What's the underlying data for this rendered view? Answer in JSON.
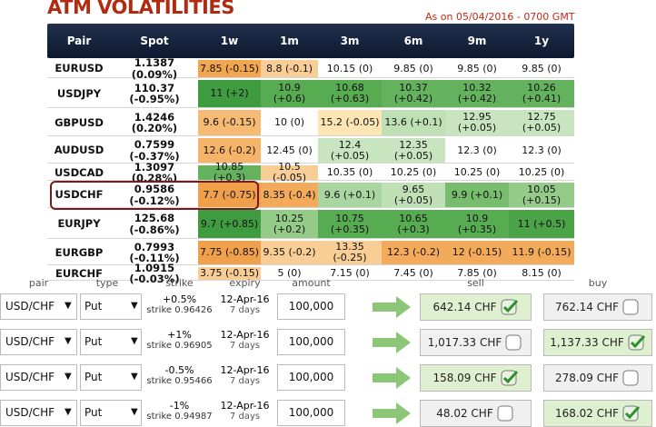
{
  "header": {
    "title": "ATM VOLATILITIES",
    "as_of": "As on 05/04/2016 - 0700 GMT"
  },
  "table": {
    "columns": [
      "Pair",
      "Spot",
      "1w",
      "1m",
      "3m",
      "6m",
      "9m",
      "1y"
    ],
    "rows": [
      {
        "cells": [
          "EURUSD",
          "1.1387 (0.09%)",
          "7.85 (-0.15)",
          "8.8 (-0.1)",
          "10.15 (0)",
          "9.85 (0)",
          "9.85 (0)",
          "9.85 (0)"
        ],
        "colors": [
          "#f2a64f",
          "#f8cd96",
          "#ffffff",
          "#ffffff",
          "#ffffff",
          "#ffffff"
        ]
      },
      {
        "cells": [
          "USDJPY",
          "110.37 (-0.95%)",
          "11 (+2)",
          "10.9 (+0.6)",
          "10.68 (+0.63)",
          "10.37 (+0.42)",
          "10.32 (+0.42)",
          "10.26 (+0.41)"
        ],
        "colors": [
          "#3f9b3f",
          "#57ab51",
          "#57ab51",
          "#64b25d",
          "#64b25d",
          "#64b25d"
        ]
      },
      {
        "cells": [
          "GBPUSD",
          "1.4246 (0.20%)",
          "9.6 (-0.15)",
          "10 (0)",
          "15.2 (-0.05)",
          "13.6 (+0.1)",
          "12.95 (+0.05)",
          "12.75 (+0.05)"
        ],
        "colors": [
          "#f5bb74",
          "#ffffff",
          "#fde6b4",
          "#bfe0b5",
          "#c8e5bf",
          "#c8e5bf"
        ]
      },
      {
        "cells": [
          "AUDUSD",
          "0.7599 (-0.37%)",
          "12.6 (-0.2)",
          "12.45 (0)",
          "12.4 (+0.05)",
          "12.35 (+0.05)",
          "12.3 (0)",
          "12.3 (0)"
        ],
        "colors": [
          "#f5b468",
          "#ffffff",
          "#c8e5bf",
          "#c8e5bf",
          "#ffffff",
          "#ffffff"
        ]
      },
      {
        "cells": [
          "USDCAD",
          "1.3097 (0.28%)",
          "10.85 (+0.3)",
          "10.5 (-0.05)",
          "10.35 (0)",
          "10.25 (0)",
          "10.25 (0)",
          "10.25 (0)"
        ],
        "colors": [
          "#64b25d",
          "#f8cd96",
          "#ffffff",
          "#ffffff",
          "#ffffff",
          "#ffffff"
        ]
      },
      {
        "cells": [
          "USDCHF",
          "0.9586 (-0.12%)",
          "7.7 (-0.75)",
          "8.35 (-0.4)",
          "9.6 (+0.1)",
          "9.65 (+0.05)",
          "9.9 (+0.1)",
          "10.05 (+0.15)"
        ],
        "colors": [
          "#f0a04b",
          "#f3ab5b",
          "#a9d6a0",
          "#bfe0b5",
          "#78bc6e",
          "#94cb89"
        ],
        "selected": true
      },
      {
        "cells": [
          "EURJPY",
          "125.68 (-0.86%)",
          "9.7 (+0.85)",
          "10.25 (+0.2)",
          "10.75 (+0.35)",
          "10.65 (+0.3)",
          "10.9 (+0.35)",
          "11 (+0.5)"
        ],
        "colors": [
          "#3f9b3f",
          "#94cb89",
          "#57ab51",
          "#57ab51",
          "#57ab51",
          "#4aa346"
        ]
      },
      {
        "cells": [
          "EURGBP",
          "0.7993 (-0.11%)",
          "7.75 (-0.85)",
          "9.35 (-0.2)",
          "13.35 (-0.25)",
          "12.3 (-0.2)",
          "12 (-0.15)",
          "11.9 (-0.15)"
        ],
        "colors": [
          "#f0a04b",
          "#f8cd96",
          "#f8cd96",
          "#f3ab5b",
          "#f3ab5b",
          "#f3ab5b"
        ]
      },
      {
        "cells": [
          "EURCHF",
          "1.0915 (-0.03%)",
          "3.75 (-0.15)",
          "5 (0)",
          "7.15 (0)",
          "7.45 (0)",
          "7.85 (0)",
          "8.15 (0)"
        ],
        "colors": [
          "#f8cd96",
          "#ffffff",
          "#ffffff",
          "#ffffff",
          "#ffffff",
          "#ffffff"
        ]
      }
    ]
  },
  "form": {
    "columns": [
      "pair",
      "type",
      "strike",
      "expiry",
      "amount",
      "sell",
      "buy"
    ],
    "rows": [
      {
        "pair": "USD/CHF",
        "type": "Put",
        "strike": "+0.5%",
        "strike_rate": "strike 0.96426",
        "expiry": "12-Apr-16",
        "tenor": "7 days",
        "amount": "100,000",
        "sell": "642.14 CHF",
        "buy": "762.14 CHF",
        "sell_checked": true,
        "buy_checked": false
      },
      {
        "pair": "USD/CHF",
        "type": "Put",
        "strike": "+1%",
        "strike_rate": "strike 0.96905",
        "expiry": "12-Apr-16",
        "tenor": "7 days",
        "amount": "100,000",
        "sell": "1,017.33 CHF",
        "buy": "1,137.33 CHF",
        "sell_checked": false,
        "buy_checked": true
      },
      {
        "pair": "USD/CHF",
        "type": "Put",
        "strike": "-0.5%",
        "strike_rate": "strike 0.95466",
        "expiry": "12-Apr-16",
        "tenor": "7 days",
        "amount": "100,000",
        "sell": "158.09 CHF",
        "buy": "278.09 CHF",
        "sell_checked": true,
        "buy_checked": false
      },
      {
        "pair": "USD/CHF",
        "type": "Put",
        "strike": "-1%",
        "strike_rate": "strike 0.94987",
        "expiry": "12-Apr-16",
        "tenor": "7 days",
        "amount": "100,000",
        "sell": "48.02 CHF",
        "buy": "168.02 CHF",
        "sell_checked": false,
        "buy_checked": true
      }
    ]
  }
}
